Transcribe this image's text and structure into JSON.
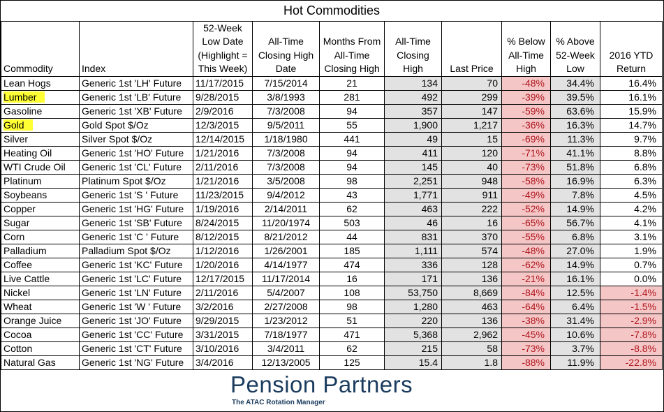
{
  "title": "Hot Commodities",
  "columns": [
    "Commodity",
    "Index",
    "52-Week Low Date (Highlight = This Week)",
    "All-Time Closing High Date",
    "Months From All-Time Closing High",
    "All-Time Closing High",
    "Last Price",
    "% Below All-Time High",
    "% Above 52-Week Low",
    "2016 YTD Return"
  ],
  "header_lines": [
    [
      "Commodity"
    ],
    [
      "Index"
    ],
    [
      "52-Week",
      "Low Date",
      "(Highlight =",
      "This Week)"
    ],
    [
      "All-Time",
      "Closing High",
      "Date"
    ],
    [
      "Months From",
      "All-Time",
      "Closing High"
    ],
    [
      "All-Time",
      "Closing",
      "High"
    ],
    [
      "Last Price"
    ],
    [
      "% Below",
      "All-Time",
      "High"
    ],
    [
      "% Above",
      "52-Week",
      "Low"
    ],
    [
      "2016 YTD",
      "Return"
    ]
  ],
  "rows": [
    {
      "commodity": "Lean Hogs",
      "index": "Generic 1st 'LH' Future",
      "low_date": "11/17/2015",
      "high_date": "7/15/2014",
      "months": "21",
      "ath": "134",
      "last": "70",
      "below": "-48%",
      "above": "34.4%",
      "ytd": "16.4%",
      "highlight": false
    },
    {
      "commodity": "Lumber",
      "index": "Generic 1st 'LB' Future",
      "low_date": "9/28/2015",
      "high_date": "3/8/1993",
      "months": "281",
      "ath": "492",
      "last": "299",
      "below": "-39%",
      "above": "39.5%",
      "ytd": "16.1%",
      "highlight": true
    },
    {
      "commodity": "Gasoline",
      "index": "Generic 1st 'XB' Future",
      "low_date": "2/9/2016",
      "high_date": "7/3/2008",
      "months": "94",
      "ath": "357",
      "last": "147",
      "below": "-59%",
      "above": "63.6%",
      "ytd": "15.9%",
      "highlight": false
    },
    {
      "commodity": "Gold",
      "index": "Gold Spot  $/Oz",
      "low_date": "12/3/2015",
      "high_date": "9/5/2011",
      "months": "55",
      "ath": "1,900",
      "last": "1,217",
      "below": "-36%",
      "above": "16.3%",
      "ytd": "14.7%",
      "highlight": true
    },
    {
      "commodity": "Silver",
      "index": "Silver Spot  $/Oz",
      "low_date": "12/14/2015",
      "high_date": "1/18/1980",
      "months": "441",
      "ath": "49",
      "last": "15",
      "below": "-69%",
      "above": "11.3%",
      "ytd": "9.7%",
      "highlight": false
    },
    {
      "commodity": "Heating Oil",
      "index": "Generic 1st 'HO' Future",
      "low_date": "1/21/2016",
      "high_date": "7/3/2008",
      "months": "94",
      "ath": "411",
      "last": "120",
      "below": "-71%",
      "above": "41.1%",
      "ytd": "8.8%",
      "highlight": false
    },
    {
      "commodity": "WTI Crude Oil",
      "index": "Generic 1st 'CL' Future",
      "low_date": "2/11/2016",
      "high_date": "7/3/2008",
      "months": "94",
      "ath": "145",
      "last": "40",
      "below": "-73%",
      "above": "51.8%",
      "ytd": "6.8%",
      "highlight": false
    },
    {
      "commodity": "Platinum",
      "index": "Platinum Spot  $/Oz",
      "low_date": "1/21/2016",
      "high_date": "3/5/2008",
      "months": "98",
      "ath": "2,251",
      "last": "948",
      "below": "-58%",
      "above": "16.9%",
      "ytd": "6.3%",
      "highlight": false
    },
    {
      "commodity": "Soybeans",
      "index": "Generic 1st 'S ' Future",
      "low_date": "11/23/2015",
      "high_date": "9/4/2012",
      "months": "43",
      "ath": "1,771",
      "last": "911",
      "below": "-49%",
      "above": "7.8%",
      "ytd": "4.5%",
      "highlight": false
    },
    {
      "commodity": "Copper",
      "index": "Generic 1st 'HG' Future",
      "low_date": "1/19/2016",
      "high_date": "2/14/2011",
      "months": "62",
      "ath": "463",
      "last": "222",
      "below": "-52%",
      "above": "14.9%",
      "ytd": "4.2%",
      "highlight": false
    },
    {
      "commodity": "Sugar",
      "index": "Generic 1st 'SB' Future",
      "low_date": "8/24/2015",
      "high_date": "11/20/1974",
      "months": "503",
      "ath": "46",
      "last": "16",
      "below": "-65%",
      "above": "56.7%",
      "ytd": "4.1%",
      "highlight": false
    },
    {
      "commodity": "Corn",
      "index": "Generic 1st 'C ' Future",
      "low_date": "8/12/2015",
      "high_date": "8/21/2012",
      "months": "44",
      "ath": "831",
      "last": "370",
      "below": "-55%",
      "above": "6.8%",
      "ytd": "3.1%",
      "highlight": false
    },
    {
      "commodity": "Palladium",
      "index": "Palladium Spot  $/Oz",
      "low_date": "1/12/2016",
      "high_date": "1/26/2001",
      "months": "185",
      "ath": "1,111",
      "last": "574",
      "below": "-48%",
      "above": "27.0%",
      "ytd": "1.9%",
      "highlight": false
    },
    {
      "commodity": "Coffee",
      "index": "Generic 1st 'KC' Future",
      "low_date": "1/20/2016",
      "high_date": "4/14/1977",
      "months": "474",
      "ath": "336",
      "last": "128",
      "below": "-62%",
      "above": "14.9%",
      "ytd": "0.7%",
      "highlight": false
    },
    {
      "commodity": "Live Cattle",
      "index": "Generic 1st 'LC' Future",
      "low_date": "12/17/2015",
      "high_date": "11/17/2014",
      "months": "16",
      "ath": "171",
      "last": "136",
      "below": "-21%",
      "above": "16.1%",
      "ytd": "0.0%",
      "highlight": false
    },
    {
      "commodity": "Nickel",
      "index": "Generic 1st 'LN' Future",
      "low_date": "2/11/2016",
      "high_date": "5/4/2007",
      "months": "108",
      "ath": "53,750",
      "last": "8,669",
      "below": "-84%",
      "above": "12.5%",
      "ytd": "-1.4%",
      "highlight": false
    },
    {
      "commodity": "Wheat",
      "index": "Generic 1st 'W ' Future",
      "low_date": "3/2/2016",
      "high_date": "2/27/2008",
      "months": "98",
      "ath": "1,280",
      "last": "463",
      "below": "-64%",
      "above": "6.4%",
      "ytd": "-1.5%",
      "highlight": false
    },
    {
      "commodity": "Orange Juice",
      "index": "Generic 1st 'JO' Future",
      "low_date": "9/29/2015",
      "high_date": "1/23/2012",
      "months": "51",
      "ath": "220",
      "last": "136",
      "below": "-38%",
      "above": "31.4%",
      "ytd": "-2.9%",
      "highlight": false
    },
    {
      "commodity": "Cocoa",
      "index": "Generic 1st 'CC' Future",
      "low_date": "3/31/2015",
      "high_date": "7/18/1977",
      "months": "471",
      "ath": "5,368",
      "last": "2,962",
      "below": "-45%",
      "above": "10.6%",
      "ytd": "-7.8%",
      "highlight": false
    },
    {
      "commodity": "Cotton",
      "index": "Generic 1st 'CT' Future",
      "low_date": "3/10/2016",
      "high_date": "3/4/2011",
      "months": "62",
      "ath": "215",
      "last": "58",
      "below": "-73%",
      "above": "3.7%",
      "ytd": "-8.8%",
      "highlight": false
    },
    {
      "commodity": "Natural Gas",
      "index": "Generic 1st 'NG' Future",
      "low_date": "3/4/2016",
      "high_date": "12/13/2005",
      "months": "125",
      "ath": "15.4",
      "last": "1.8",
      "below": "-88%",
      "above": "11.9%",
      "ytd": "-22.8%",
      "highlight": false
    }
  ],
  "logo": {
    "name": "Pension Partners",
    "tagline": "The ATAC Rotation Manager"
  },
  "colors": {
    "highlight": "#ffff33",
    "negative_fill": "#f4c6c6",
    "negative_text": "#b0171f",
    "grey_fill": "#e2e2e2",
    "logo_blue": "#1b3c5e"
  }
}
